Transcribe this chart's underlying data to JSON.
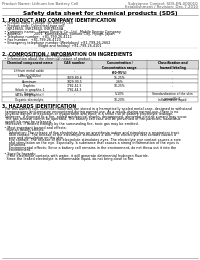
{
  "bg_color": "#ffffff",
  "header_left": "Product Name: Lithium Ion Battery Cell",
  "header_right_line1": "Substance Control: SDS-EN-000010",
  "header_right_line2": "Establishment / Revision: Dec.7.2010",
  "title": "Safety data sheet for chemical products (SDS)",
  "section1_title": "1. PRODUCT AND COMPANY IDENTIFICATION",
  "section1_lines": [
    "  • Product name: Lithium Ion Battery Cell",
    "  • Product code: Cylindrical-type cell",
    "    INR18650, INR18650, INR18650A",
    "  • Company name:   Sanyo Electric Co., Ltd.  Mobile Energy Company",
    "  • Address:           2001  Kamitakatani, Sumoto City, Hyogo, Japan",
    "  • Telephone number:  +81-799-26-4111",
    "  • Fax number:  +81-799-26-4120",
    "  • Emergency telephone number (Weekdays) +81-799-26-2662",
    "                                (Night and holiday) +81-799-26-4101"
  ],
  "section2_title": "2. COMPOSITION / INFORMATION ON INGREDIENTS",
  "section2_intro": "  • Substance or preparation: Preparation",
  "section2_sub": "  • Information about the chemical nature of product:",
  "table_col_headers": [
    "Chemical component name",
    "CAS number",
    "Concentration /\nConcentration range\n(50-95%)",
    "Classification and\nhazard labeling"
  ],
  "table_rows": [
    [
      "Lithium metal oxide\n(LiMn-Co2(O2)x)",
      "-",
      "-",
      "-"
    ],
    [
      "Iron",
      "7439-89-6",
      "15-25%",
      "-"
    ],
    [
      "Aluminum",
      "7429-90-5",
      "2-6%",
      "-"
    ],
    [
      "Graphite\n(black in graphite-1\n(ATBs as graphite))",
      "7782-42-5\n7782-44-3",
      "10-25%",
      "-"
    ],
    [
      "Copper",
      "-",
      "5-10%",
      "Standardization of the skin\ngroup No.2"
    ],
    [
      "Organic electrolyte",
      "-",
      "10-20%",
      "Inflammable liquid"
    ]
  ],
  "section3_title": "3. HAZARDS IDENTIFICATION",
  "section3_para": [
    "   For this battery cell, chemical materials are stored in a hermetically sealed metal case, designed to withstand",
    "   temperatures and pressure encountered during normal use. As a result, during normal use, there is no",
    "   physical danger of explosion or evaporation and there is a small risk of battery electrolyte leakage.",
    "   However, if exposed to a fire, added mechanical shocks, decomposed, abnormal electric current may occur.",
    "   The gas release cannot be operated. The battery cell case will be prevented of fire-particles, hazardous",
    "   materials may be released.",
    "   Moreover, if heated strongly by the surrounding fire, toxic gas may be emitted."
  ],
  "section3_bullet1": "  • Most important hazard and effects:",
  "section3_human": "    Human health effects:",
  "section3_human_lines": [
    "      Inhalation: The release of the electrolyte has an anesthesia action and stimulates a respiratory tract.",
    "      Skin contact: The release of the electrolyte stimulates a skin. The electrolyte skin contact causes a",
    "      sore and stimulation on the skin.",
    "      Eye contact: The release of the electrolyte stimulates eyes. The electrolyte eye contact causes a sore",
    "      and stimulation on the eye. Especially, a substance that causes a strong inflammation of the eyes is",
    "      contained.",
    "      Environmental effects: Since a battery cell remains in the environment, do not throw out it into the",
    "      environment."
  ],
  "section3_specific": "  • Specific hazards:",
  "section3_specific_lines": [
    "    If the electrolyte contacts with water, it will generate detrimental hydrogen fluoride.",
    "    Since the leaked electrolyte is inflammable liquid, do not bring close to fire."
  ]
}
